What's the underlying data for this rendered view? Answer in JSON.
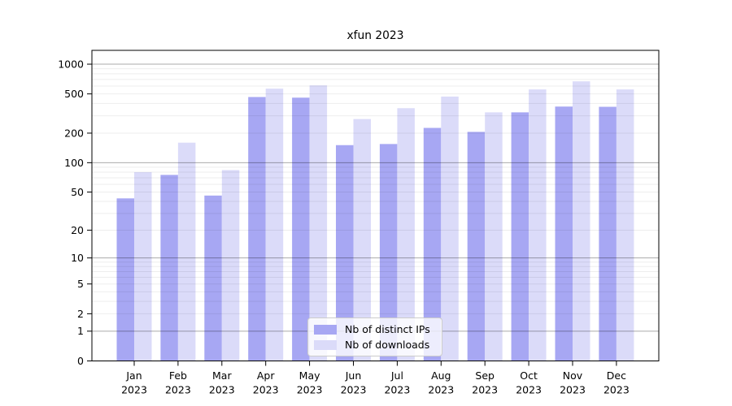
{
  "chart_data": {
    "type": "bar",
    "title": "xfun 2023",
    "categories": [
      "Jan",
      "Feb",
      "Mar",
      "Apr",
      "May",
      "Jun",
      "Jul",
      "Aug",
      "Sep",
      "Oct",
      "Nov",
      "Dec"
    ],
    "x_year": "2023",
    "series": [
      {
        "name": "Nb of distinct IPs",
        "color": "#a7a7f3",
        "values": [
          43,
          75,
          46,
          465,
          458,
          151,
          155,
          226,
          206,
          325,
          372,
          370
        ]
      },
      {
        "name": "Nb of downloads",
        "color": "#dbdbf9",
        "values": [
          80,
          160,
          84,
          565,
          610,
          278,
          358,
          470,
          325,
          555,
          670,
          555
        ]
      }
    ],
    "yscale": "log1p",
    "yticks": [
      0,
      1,
      2,
      5,
      10,
      20,
      50,
      100,
      200,
      500,
      1000
    ],
    "ylim": [
      0,
      1380
    ],
    "grid": "horizontal major+minor log gridlines drawn over bars",
    "legend_position": "lower center inside plot",
    "colors": {
      "major_gridline": "rgba(0,0,0,0.33)",
      "minor_gridline": "rgba(0,0,0,0.07)",
      "axis": "#000000"
    }
  }
}
